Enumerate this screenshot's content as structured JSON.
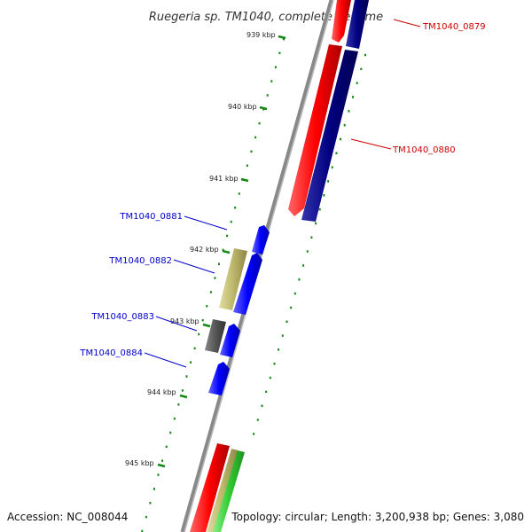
{
  "title": "Ruegeria sp. TM1040, complete genome",
  "accession": "Accession: NC_008044",
  "summary": "Topology: circular; Length: 3,200,938 bp; Genes: 3,080",
  "ticks": [
    {
      "label": "939 kbp"
    },
    {
      "label": "940 kbp"
    },
    {
      "label": "941 kbp"
    },
    {
      "label": "942 kbp"
    },
    {
      "label": "943 kbp"
    },
    {
      "label": "944 kbp"
    },
    {
      "label": "945 kbp"
    }
  ],
  "gene_labels": [
    {
      "text": "TM1040_0879",
      "color": "#cc0000"
    },
    {
      "text": "TM1040_0880",
      "color": "#cc0000"
    },
    {
      "text": "TM1040_0881",
      "color": "#0000cc"
    },
    {
      "text": "TM1040_0882",
      "color": "#0000cc"
    },
    {
      "text": "TM1040_0883",
      "color": "#0000cc"
    },
    {
      "text": "TM1040_0884",
      "color": "#0000cc"
    }
  ],
  "colors": {
    "backbone": "#888888",
    "cds_red": "#ff0000",
    "cds_navy": "#000080",
    "cds_blue": "#0000ff",
    "cds_tan": "#bdb76b",
    "cds_grey": "#555555",
    "cds_green": "#33cc33",
    "tick": "#118811"
  }
}
